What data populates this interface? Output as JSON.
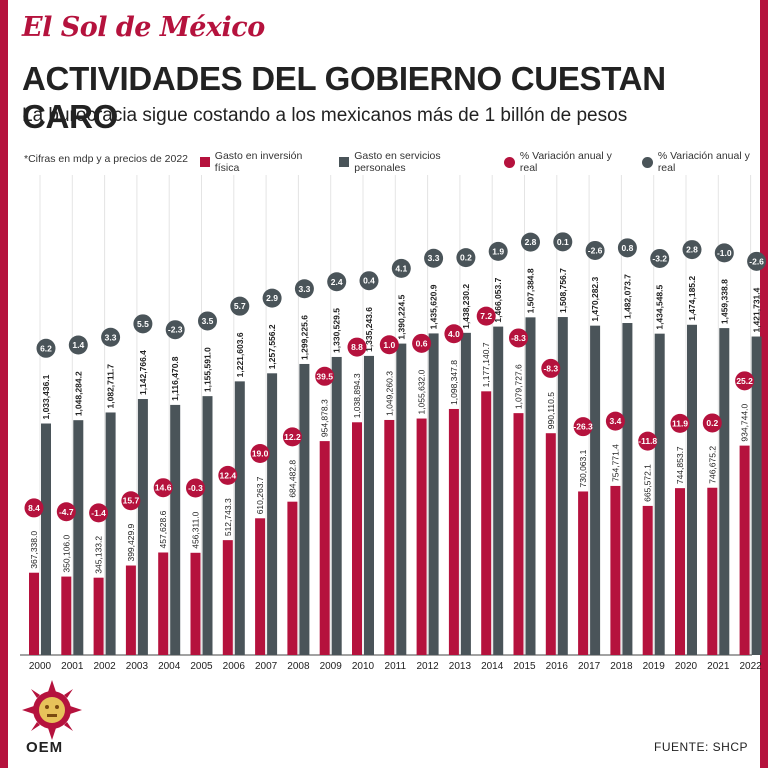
{
  "header": {
    "masthead": "El Sol de México",
    "title": "ACTIVIDADES DEL GOBIERNO CUESTAN CARO",
    "subtitle": "La burocracia sigue costando a los mexicanos más de 1 billón de pesos"
  },
  "note": "*Cifras en mdp y a precios de 2022",
  "legend": {
    "inv": "Gasto en inversión física",
    "serv": "Gasto en servicios personales",
    "var_inv": "% Variación anual y real",
    "var_serv": "% Variación anual y real"
  },
  "colors": {
    "inv": "#b5123d",
    "serv": "#4a5459"
  },
  "source": "FUENTE: SHCP",
  "logo_text": "OEM",
  "chart_data": {
    "type": "bar",
    "categories": [
      "2000",
      "2001",
      "2002",
      "2003",
      "2004",
      "2005",
      "2006",
      "2007",
      "2008",
      "2009",
      "2010",
      "2011",
      "2012",
      "2013",
      "2014",
      "2015",
      "2016",
      "2017",
      "2018",
      "2019",
      "2020",
      "2021",
      "2022"
    ],
    "series": [
      {
        "name": "Gasto en inversión física",
        "values": [
          367338.0,
          350106.0,
          345133.2,
          399429.9,
          457628.6,
          456311.0,
          512743.3,
          610263.7,
          684482.8,
          954878.3,
          1038894.3,
          1049260.3,
          1055632.0,
          1098347.8,
          1177140.7,
          1079727.6,
          990110.5,
          730063.1,
          754771.4,
          665572.1,
          744853.7,
          746675.2,
          934744.0
        ],
        "labels": [
          "367,338.0",
          "350,106.0",
          "345,133.2",
          "399,429.9",
          "457,628.6",
          "456,311.0",
          "512,743.3",
          "610,263.7",
          "684,482.8",
          "954,878.3",
          "1,038,894.3",
          "1,049,260.3",
          "1,055,632.0",
          "1,098,347.8",
          "1,177,140.7",
          "1,079,727.6",
          "990,110.5",
          "730,063.1",
          "754,771.4",
          "665,572.1",
          "744,853.7",
          "746,675.2",
          "934,744.0"
        ],
        "variation": [
          "8.4",
          "-4.7",
          "-1.4",
          "15.7",
          "14.6",
          "-0.3",
          "12.4",
          "19.0",
          "12.2",
          "39.5",
          "8.8",
          "1.0",
          "0.6",
          "4.0",
          "7.2",
          "-8.3",
          "-8.3",
          "-26.3",
          "3.4",
          "-11.8",
          "11.9",
          "0.2",
          "25.2"
        ]
      },
      {
        "name": "Gasto en servicios personales",
        "values": [
          1033436.1,
          1048284.2,
          1082711.7,
          1142766.4,
          1116470.8,
          1155591.0,
          1221603.6,
          1257556.2,
          1299225.6,
          1330529.5,
          1335243.6,
          1390224.5,
          1435620.9,
          1438230.2,
          1466053.7,
          1507384.8,
          1508756.7,
          1470282.3,
          1482073.7,
          1434548.5,
          1474185.2,
          1459338.8,
          1421731.4
        ],
        "labels": [
          "1,033,436.1",
          "1,048,284.2",
          "1,082,711.7",
          "1,142,766.4",
          "1,116,470.8",
          "1,155,591.0",
          "1,221,603.6",
          "1,257,556.2",
          "1,299,225.6",
          "1,330,529.5",
          "1,335,243.6",
          "1,390,224.5",
          "1,435,620.9",
          "1,438,230.2",
          "1,466,053.7",
          "1,507,384.8",
          "1,508,756.7",
          "1,470,282.3",
          "1,482,073.7",
          "1,434,548.5",
          "1,474,185.2",
          "1,459,338.8",
          "1,421,731.4"
        ],
        "variation": [
          "6.2",
          "1.4",
          "3.3",
          "5.5",
          "-2.3",
          "3.5",
          "5.7",
          "2.9",
          "3.3",
          "2.4",
          "0.4",
          "4.1",
          "3.3",
          "0.2",
          "1.9",
          "2.8",
          "0.1",
          "-2.6",
          "0.8",
          "-3.2",
          "2.8",
          "-1.0",
          "-2.6"
        ]
      }
    ]
  }
}
